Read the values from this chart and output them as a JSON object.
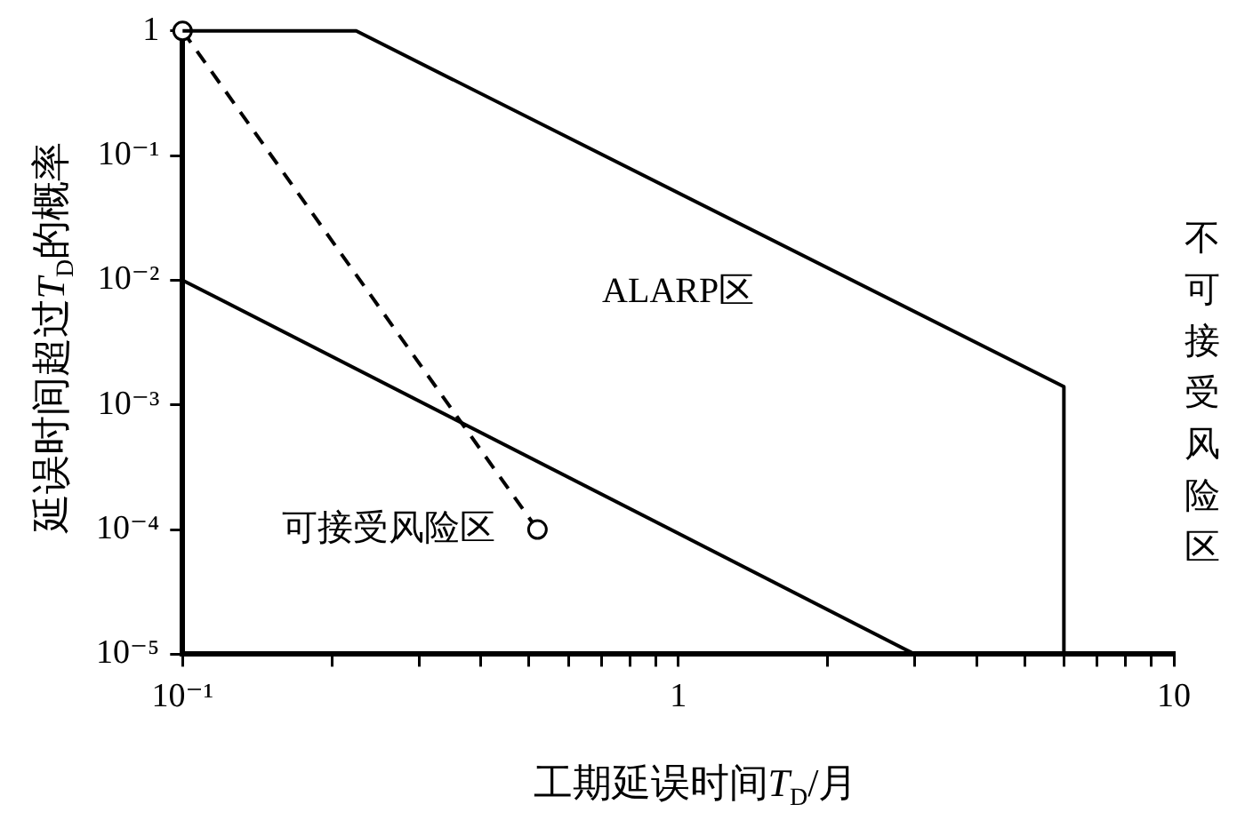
{
  "chart_data": {
    "type": "line",
    "xlabel": "工期延误时间T$_{D}$/月",
    "ylabel": "延误时间超过T$_{D}$的概率",
    "log": "xy",
    "grid": false,
    "legend": false,
    "xlim": [
      0.1,
      10
    ],
    "xticks": [
      {
        "value": 0.1,
        "label": "10⁻¹"
      },
      {
        "value": 0.2,
        "label": null
      },
      {
        "value": 0.3,
        "label": null
      },
      {
        "value": 0.4,
        "label": null
      },
      {
        "value": 0.5,
        "label": null
      },
      {
        "value": 0.6,
        "label": null
      },
      {
        "value": 0.7,
        "label": null
      },
      {
        "value": 0.8,
        "label": null
      },
      {
        "value": 0.9,
        "label": null
      },
      1,
      {
        "value": 2,
        "label": null
      },
      {
        "value": 3,
        "label": null
      },
      {
        "value": 4,
        "label": null
      },
      {
        "value": 5,
        "label": null
      },
      {
        "value": 6,
        "label": null
      },
      {
        "value": 7,
        "label": null
      },
      {
        "value": 8,
        "label": null
      },
      {
        "value": 9,
        "label": null
      },
      10
    ],
    "ylim": [
      1e-05,
      1
    ],
    "yticks": [
      {
        "value": 1e-05,
        "label": "10⁻⁵"
      },
      {
        "value": 0.0001,
        "label": "10⁻⁴"
      },
      {
        "value": 0.001,
        "label": "10⁻³"
      },
      {
        "value": 0.01,
        "label": "10⁻²"
      },
      {
        "value": 0.1,
        "label": "10⁻¹"
      },
      1
    ],
    "series": [
      {
        "color": "#000000",
        "x": [
          0.1,
          0.224,
          6.0,
          6.0
        ],
        "values": [
          1,
          1,
          0.0014,
          1e-05
        ],
        "marker": "none",
        "line_style": "solid"
      },
      {
        "color": "#000000",
        "x": [
          0.1,
          3.0
        ],
        "values": [
          0.01,
          1e-05
        ],
        "marker": "none",
        "line_style": "solid"
      },
      {
        "color": "#000000",
        "x": [
          0.1,
          0.52
        ],
        "values": [
          1,
          0.0001
        ],
        "marker": "circle",
        "line_style": "dashed"
      }
    ],
    "annotations": [
      "ALARP区",
      "可接受风险区",
      "不可接受风险区"
    ]
  }
}
